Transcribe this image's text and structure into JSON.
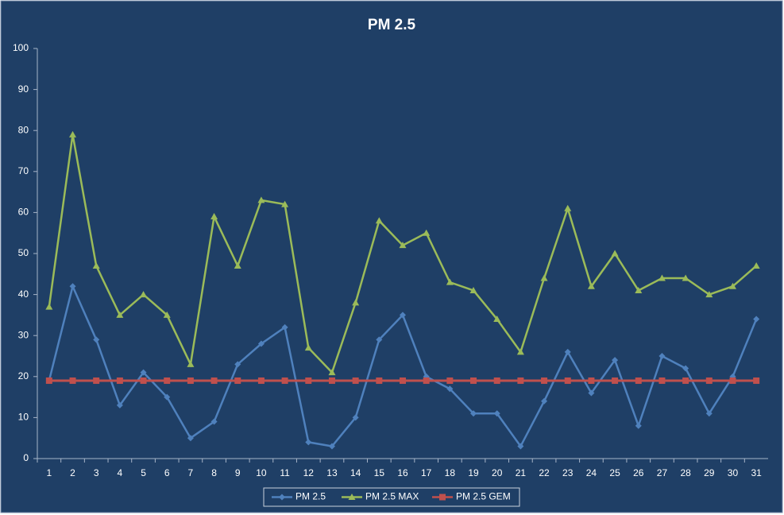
{
  "chart_data": {
    "type": "line",
    "title": "PM 2.5",
    "categories": [
      1,
      2,
      3,
      4,
      5,
      6,
      7,
      8,
      9,
      10,
      11,
      12,
      13,
      14,
      15,
      16,
      17,
      18,
      19,
      20,
      21,
      22,
      23,
      24,
      25,
      26,
      27,
      28,
      29,
      30,
      31
    ],
    "series": [
      {
        "name": "PM 2.5",
        "color": "#4f81bd",
        "marker": "diamond",
        "values": [
          19,
          42,
          29,
          13,
          21,
          15,
          5,
          9,
          23,
          28,
          32,
          4,
          3,
          10,
          29,
          35,
          20,
          17,
          11,
          11,
          3,
          14,
          26,
          16,
          24,
          8,
          25,
          22,
          11,
          20,
          34
        ]
      },
      {
        "name": "PM 2.5 MAX",
        "color": "#9bbb59",
        "marker": "triangle",
        "values": [
          37,
          79,
          47,
          35,
          40,
          35,
          23,
          59,
          47,
          63,
          62,
          27,
          21,
          38,
          58,
          52,
          55,
          43,
          41,
          34,
          26,
          44,
          61,
          42,
          50,
          41,
          44,
          44,
          40,
          42,
          47
        ]
      },
      {
        "name": "PM 2.5 GEM",
        "color": "#c0504d",
        "marker": "square",
        "values": [
          19,
          19,
          19,
          19,
          19,
          19,
          19,
          19,
          19,
          19,
          19,
          19,
          19,
          19,
          19,
          19,
          19,
          19,
          19,
          19,
          19,
          19,
          19,
          19,
          19,
          19,
          19,
          19,
          19,
          19,
          19
        ]
      }
    ],
    "ylim": [
      0,
      100
    ],
    "yticks": [
      0,
      10,
      20,
      30,
      40,
      50,
      60,
      70,
      80,
      90,
      100
    ],
    "grid": false,
    "legend": "bottom"
  }
}
